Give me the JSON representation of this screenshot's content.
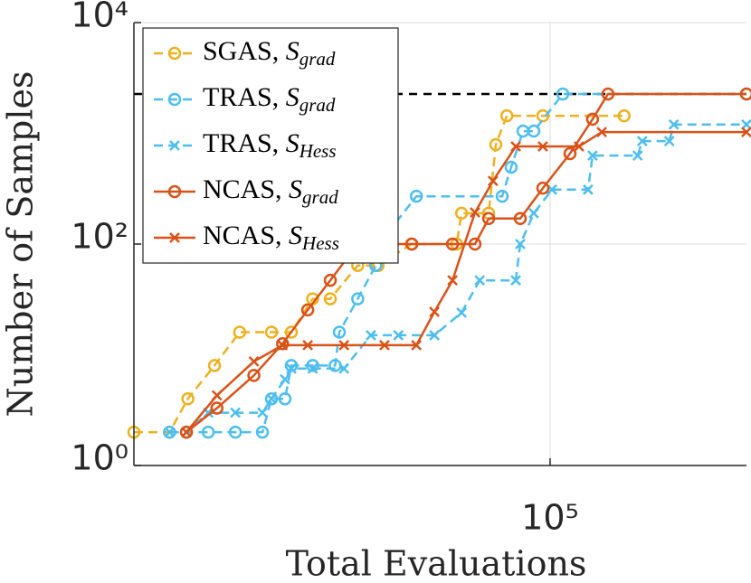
{
  "chart_data": {
    "type": "line",
    "xlabel": "Total Evaluations",
    "ylabel": "Number of Samples",
    "xscale": "log",
    "yscale": "log",
    "xlim": [
      8500,
      320000
    ],
    "ylim": [
      1,
      10000
    ],
    "xticks": [
      {
        "value": 100000,
        "label": "10⁵"
      }
    ],
    "yticks": [
      {
        "value": 1,
        "label": "10⁰"
      },
      {
        "value": 100,
        "label": "10²"
      },
      {
        "value": 10000,
        "label": "10⁴"
      }
    ],
    "grid": true,
    "legend": "upper left",
    "reference_line": {
      "value": 2264,
      "color": "#000000"
    },
    "series": [
      {
        "name": "SGAS, Sgrad",
        "color": "#EDB120",
        "linestyle": "dashed",
        "marker": "o",
        "x": [
          8500,
          10500,
          11700,
          13700,
          15900,
          19200,
          21600,
          24500,
          27200,
          32000,
          36100,
          44000,
          57500,
          59200,
          69500,
          72500,
          77400,
          95800,
          155000
        ],
        "values": [
          2,
          2,
          4,
          8,
          16,
          16,
          16,
          32,
          32,
          64,
          64,
          100,
          100,
          190,
          190,
          790,
          1440,
          1440,
          1440
        ]
      },
      {
        "name": "TRAS, Sgrad",
        "color": "#4DBEEE",
        "linestyle": "dashed",
        "marker": "o",
        "x": [
          10500,
          11600,
          13200,
          15500,
          18200,
          19200,
          20800,
          21600,
          24500,
          28000,
          28700,
          32000,
          35600,
          38600,
          45300,
          75300,
          79400,
          85200,
          90800,
          107800,
          320000
        ],
        "values": [
          2,
          2,
          2,
          2,
          2,
          4,
          4,
          8,
          8,
          8,
          16,
          32,
          64,
          132,
          270,
          270,
          494,
          1047,
          1047,
          2264,
          2264
        ]
      },
      {
        "name": "TRAS, SHess",
        "color": "#4DBEEE",
        "linestyle": "dashed",
        "marker": "x",
        "x": [
          10500,
          11600,
          13200,
          15500,
          18200,
          19200,
          20800,
          21600,
          24500,
          29500,
          34600,
          40700,
          50400,
          59200,
          65900,
          81600,
          83800,
          90800,
          101100,
          125200,
          128600,
          168000,
          172600,
          202600,
          208000,
          320000
        ],
        "values": [
          2,
          2,
          3,
          3,
          3,
          4,
          6,
          7.5,
          7.5,
          7.5,
          15,
          15,
          15,
          24,
          47,
          47,
          100,
          190,
          310,
          310,
          630,
          630,
          850,
          850,
          1200,
          1200
        ]
      },
      {
        "name": "NCAS, Sgrad",
        "color": "#D95319",
        "linestyle": "solid",
        "marker": "o",
        "x": [
          11600,
          13900,
          17300,
          20500,
          23800,
          27200,
          32000,
          44100,
          56100,
          64100,
          69500,
          83800,
          95800,
          112500,
          128600,
          140900,
          320000
        ],
        "values": [
          2,
          3.3,
          6.5,
          12.6,
          25.4,
          47,
          100,
          100,
          100,
          100,
          170,
          170,
          320,
          655,
          1340,
          2264,
          2264
        ]
      },
      {
        "name": "NCAS, SHess",
        "color": "#D95319",
        "linestyle": "solid",
        "marker": "x",
        "x": [
          11600,
          13900,
          17300,
          20500,
          23800,
          29500,
          37500,
          45300,
          50400,
          56100,
          64100,
          71300,
          81600,
          95800,
          118700,
          135800,
          320000
        ],
        "values": [
          2,
          4.3,
          8.7,
          12.2,
          12.2,
          12.2,
          12.2,
          12.2,
          24.4,
          47,
          193,
          372,
          762,
          762,
          762,
          1027,
          1027
        ]
      }
    ]
  }
}
